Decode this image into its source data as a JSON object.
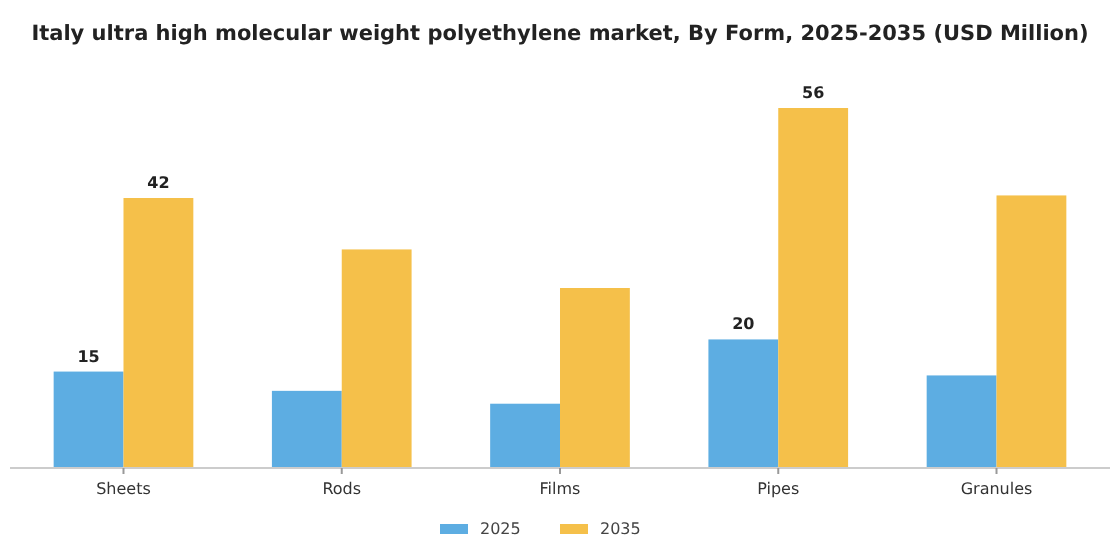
{
  "chart_data": {
    "type": "bar",
    "title": "Italy ultra high molecular weight polyethylene market, By Form, 2025-2035 (USD Million)",
    "categories": [
      "Sheets",
      "Rods",
      "Films",
      "Pipes",
      "Granules"
    ],
    "series": [
      {
        "name": "2025",
        "color": "#5dade2",
        "values": [
          15,
          12,
          10,
          20,
          14.4
        ],
        "value_labels": [
          "15",
          null,
          null,
          "20",
          null
        ]
      },
      {
        "name": "2035",
        "color": "#f5c04a",
        "values": [
          42,
          34,
          28,
          56,
          42.4
        ],
        "value_labels": [
          "42",
          null,
          null,
          "56",
          null
        ]
      }
    ],
    "legend": "bottom",
    "grid": false
  }
}
